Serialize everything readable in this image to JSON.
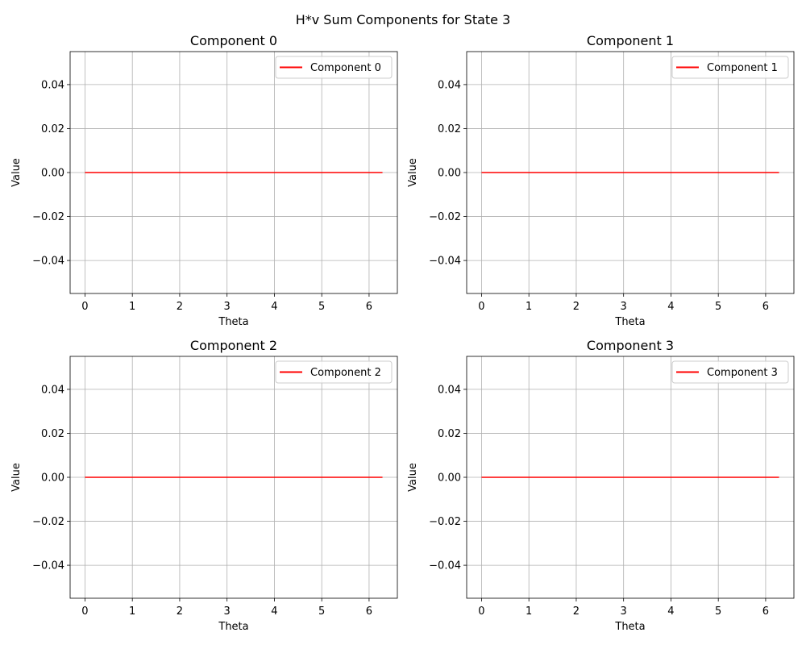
{
  "figure_title": "H*v Sum Components for State 3",
  "colors": {
    "line": "#ff0000",
    "grid": "#b0b0b0",
    "axes": "#000000",
    "legend_border": "#cccccc"
  },
  "chart_data": [
    {
      "type": "line",
      "title": "Component 0",
      "xlabel": "Theta",
      "ylabel": "Value",
      "xlim": [
        -0.314,
        6.597
      ],
      "ylim": [
        -0.055,
        0.055
      ],
      "xticks": [
        0,
        1,
        2,
        3,
        4,
        5,
        6
      ],
      "xtick_labels": [
        "0",
        "1",
        "2",
        "3",
        "4",
        "5",
        "6"
      ],
      "yticks": [
        -0.04,
        -0.02,
        0.0,
        0.02,
        0.04
      ],
      "ytick_labels": [
        "−0.04",
        "−0.02",
        "0.00",
        "0.02",
        "0.04"
      ],
      "grid": true,
      "legend_position": "top-right",
      "series": [
        {
          "name": "Component 0",
          "x": [
            0,
            6.283
          ],
          "y": [
            0,
            0
          ]
        }
      ]
    },
    {
      "type": "line",
      "title": "Component 1",
      "xlabel": "Theta",
      "ylabel": "Value",
      "xlim": [
        -0.314,
        6.597
      ],
      "ylim": [
        -0.055,
        0.055
      ],
      "xticks": [
        0,
        1,
        2,
        3,
        4,
        5,
        6
      ],
      "xtick_labels": [
        "0",
        "1",
        "2",
        "3",
        "4",
        "5",
        "6"
      ],
      "yticks": [
        -0.04,
        -0.02,
        0.0,
        0.02,
        0.04
      ],
      "ytick_labels": [
        "−0.04",
        "−0.02",
        "0.00",
        "0.02",
        "0.04"
      ],
      "grid": true,
      "legend_position": "top-right",
      "series": [
        {
          "name": "Component 1",
          "x": [
            0,
            6.283
          ],
          "y": [
            0,
            0
          ]
        }
      ]
    },
    {
      "type": "line",
      "title": "Component 2",
      "xlabel": "Theta",
      "ylabel": "Value",
      "xlim": [
        -0.314,
        6.597
      ],
      "ylim": [
        -0.055,
        0.055
      ],
      "xticks": [
        0,
        1,
        2,
        3,
        4,
        5,
        6
      ],
      "xtick_labels": [
        "0",
        "1",
        "2",
        "3",
        "4",
        "5",
        "6"
      ],
      "yticks": [
        -0.04,
        -0.02,
        0.0,
        0.02,
        0.04
      ],
      "ytick_labels": [
        "−0.04",
        "−0.02",
        "0.00",
        "0.02",
        "0.04"
      ],
      "grid": true,
      "legend_position": "top-right",
      "series": [
        {
          "name": "Component 2",
          "x": [
            0,
            6.283
          ],
          "y": [
            0,
            0
          ]
        }
      ]
    },
    {
      "type": "line",
      "title": "Component 3",
      "xlabel": "Theta",
      "ylabel": "Value",
      "xlim": [
        -0.314,
        6.597
      ],
      "ylim": [
        -0.055,
        0.055
      ],
      "xticks": [
        0,
        1,
        2,
        3,
        4,
        5,
        6
      ],
      "xtick_labels": [
        "0",
        "1",
        "2",
        "3",
        "4",
        "5",
        "6"
      ],
      "yticks": [
        -0.04,
        -0.02,
        0.0,
        0.02,
        0.04
      ],
      "ytick_labels": [
        "−0.04",
        "−0.02",
        "0.00",
        "0.02",
        "0.04"
      ],
      "grid": true,
      "legend_position": "top-right",
      "series": [
        {
          "name": "Component 3",
          "x": [
            0,
            6.283
          ],
          "y": [
            0,
            0
          ]
        }
      ]
    }
  ]
}
